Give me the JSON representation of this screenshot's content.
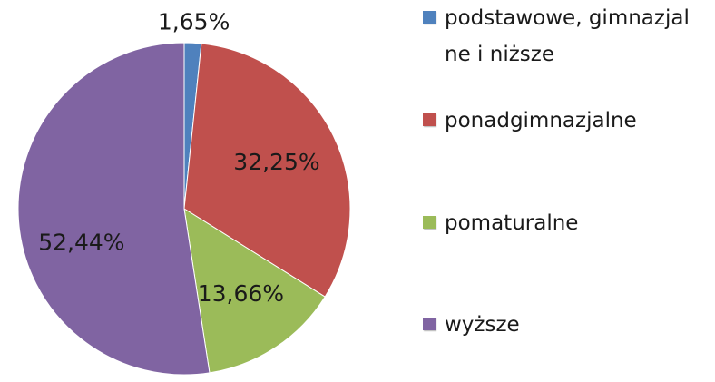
{
  "chart_data": {
    "type": "pie",
    "categories": [
      "podstawowe, gimnazjalne i niższe",
      "ponadgimnazjalne",
      "pomaturalne",
      "wyższe"
    ],
    "values": [
      1.65,
      32.25,
      13.66,
      52.44
    ],
    "value_labels": [
      "1,65%",
      "32,25%",
      "13,66%",
      "52,44%"
    ],
    "colors": [
      "#4f81bd",
      "#c0504d",
      "#9bbb59",
      "#8064a2"
    ],
    "legend": "right"
  }
}
